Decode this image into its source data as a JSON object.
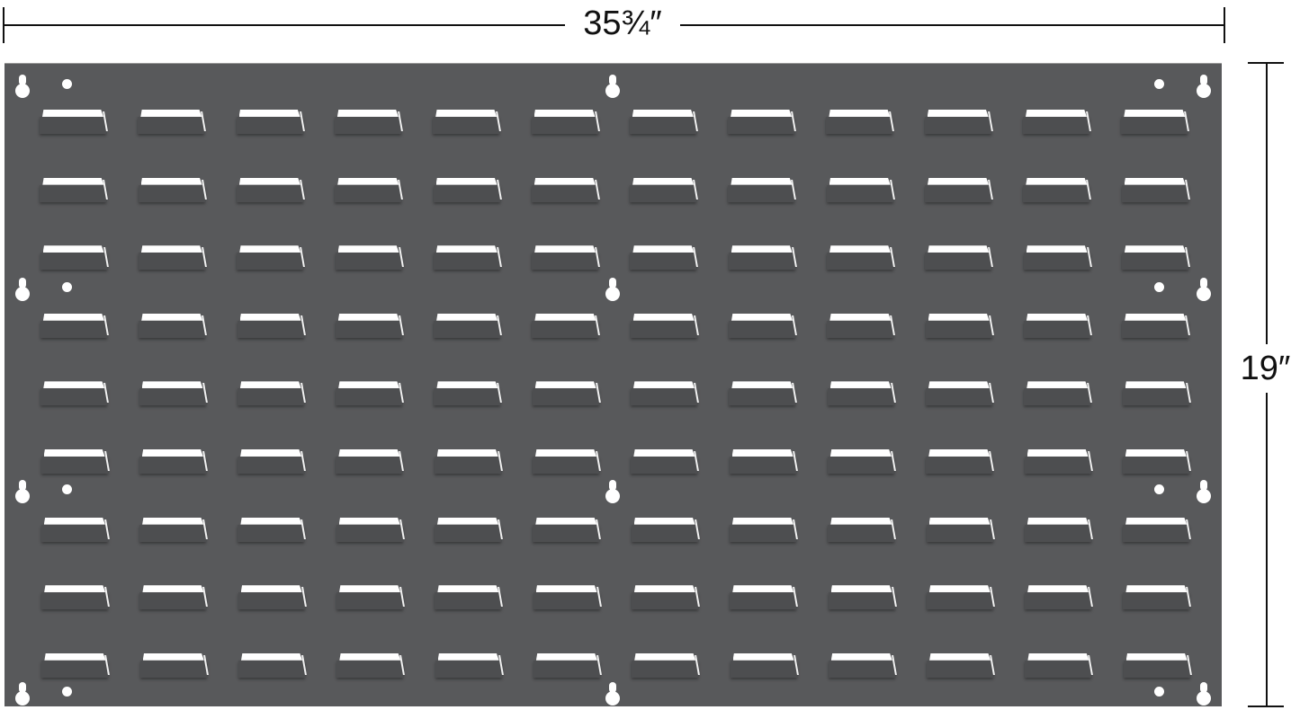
{
  "dimensions": {
    "width_label": "35¾″",
    "height_label": "19″"
  },
  "panel": {
    "description_color": "#58595b",
    "louver_face_color": "#4d4e50",
    "highlight_color": "#ffffff"
  }
}
